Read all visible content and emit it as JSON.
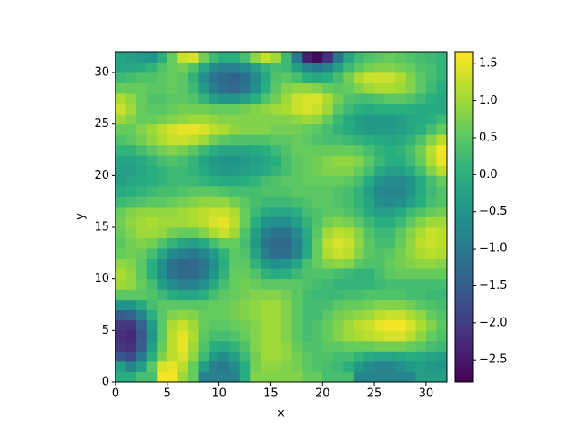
{
  "chart_data": {
    "type": "heatmap",
    "xlabel": "x",
    "ylabel": "y",
    "colormap": "viridis",
    "xlim": [
      0,
      32
    ],
    "ylim": [
      0,
      32
    ],
    "xticks": [
      0,
      5,
      10,
      15,
      20,
      25,
      30
    ],
    "yticks": [
      0,
      5,
      10,
      15,
      20,
      25,
      30
    ],
    "clim": [
      -2.8,
      1.66
    ],
    "cticks": [
      {
        "value": -2.5,
        "label": "−2.5"
      },
      {
        "value": -2,
        "label": "−2.0"
      },
      {
        "value": -1.5,
        "label": "−1.5"
      },
      {
        "value": -1,
        "label": "−1.0"
      },
      {
        "value": -0.5,
        "label": "−0.5"
      },
      {
        "value": 0,
        "label": "0.0"
      },
      0.5,
      {
        "value": 1,
        "label": "1.0"
      },
      1.5
    ],
    "z": [
      [
        0,
        0,
        0.3,
        0.3,
        1.6,
        1.6,
        1.0,
        0.6,
        -0.9,
        -0.9,
        -0.9,
        -0.9,
        0,
        0.8,
        0.8,
        0.8,
        0.8,
        0.8,
        0.6,
        0.6,
        0.3,
        0.3,
        0.3,
        -0.8,
        -0.8,
        -0.8,
        -0.8,
        -0.8,
        -0.8,
        -0.3,
        -0.3,
        -0.3
      ],
      [
        -0.3,
        -0.8,
        -0.3,
        0.5,
        1.4,
        1.5,
        1.2,
        0.6,
        -0.3,
        -0.9,
        -1.0,
        -0.7,
        0,
        0.7,
        0.9,
        0.9,
        0.8,
        0.7,
        0.5,
        0.4,
        0.3,
        0.2,
        0,
        -0.4,
        -0.7,
        -0.8,
        -0.8,
        -0.6,
        -0.4,
        -0.3,
        -0.4,
        -0.5
      ],
      [
        -1.6,
        -1.8,
        -1.0,
        0,
        0.8,
        1.2,
        1.4,
        0.9,
        0.2,
        -0.4,
        -0.6,
        -0.3,
        0.2,
        0.7,
        1.0,
        1.0,
        0.9,
        0.7,
        0.5,
        0.4,
        0.4,
        0.3,
        0.3,
        0.1,
        -0.1,
        -0.2,
        -0.2,
        -0.1,
        0,
        -0.1,
        -0.2,
        -0.3
      ],
      [
        -2.1,
        -2.2,
        -1.5,
        -0.3,
        0.6,
        1.2,
        1.5,
        1.0,
        0.4,
        0,
        -0.1,
        0.1,
        0.4,
        0.8,
        1.0,
        1.0,
        0.9,
        0.6,
        0.4,
        0.4,
        0.5,
        0.5,
        0.6,
        0.6,
        0.6,
        0.7,
        0.7,
        0.7,
        0.6,
        0.5,
        0.3,
        0.2
      ],
      [
        -2.2,
        -2.3,
        -1.6,
        -0.5,
        0.5,
        1.2,
        1.5,
        1.1,
        0.5,
        0.3,
        0.3,
        0.4,
        0.6,
        0.8,
        1.0,
        1.0,
        0.8,
        0.5,
        0.3,
        0.4,
        0.6,
        0.8,
        1.0,
        1.1,
        1.2,
        1.3,
        1.4,
        1.4,
        1.2,
        0.9,
        0.6,
        0.4
      ],
      [
        -2.1,
        -2.1,
        -1.4,
        -0.4,
        0.5,
        1.1,
        1.3,
        1.0,
        0.6,
        0.5,
        0.5,
        0.6,
        0.7,
        0.8,
        1.0,
        1.0,
        0.8,
        0.5,
        0.3,
        0.4,
        0.6,
        0.8,
        1.0,
        1.2,
        1.3,
        1.5,
        1.6,
        1.6,
        1.4,
        1.1,
        0.8,
        0.5
      ],
      [
        -1.5,
        -1.4,
        -0.8,
        0,
        0.5,
        0.8,
        0.9,
        0.8,
        0.6,
        0.6,
        0.6,
        0.7,
        0.8,
        0.9,
        1.0,
        1.0,
        0.8,
        0.5,
        0.3,
        0.3,
        0.5,
        0.7,
        0.8,
        0.9,
        1.0,
        1.2,
        1.3,
        1.3,
        1.1,
        0.9,
        0.6,
        0.4
      ],
      [
        -0.5,
        -0.5,
        -0.1,
        0.3,
        0.5,
        0.5,
        0.5,
        0.5,
        0.5,
        0.6,
        0.6,
        0.7,
        0.8,
        0.9,
        1.0,
        1.0,
        0.8,
        0.5,
        0.3,
        0.3,
        0.3,
        0.5,
        0.6,
        0.6,
        0.7,
        0.8,
        0.8,
        0.8,
        0.7,
        0.5,
        0.4,
        0.3
      ],
      [
        0.5,
        0.5,
        0.5,
        0.4,
        0.2,
        0,
        -0.2,
        -0.2,
        0,
        0.3,
        0.5,
        0.6,
        0.7,
        0.8,
        0.8,
        0.8,
        0.7,
        0.5,
        0.3,
        0.2,
        0.2,
        0.2,
        0.3,
        0.3,
        0.4,
        0.4,
        0.4,
        0.4,
        0.3,
        0.3,
        0.2,
        0.2
      ],
      [
        1.0,
        0.9,
        0.6,
        0.3,
        -0.3,
        -0.7,
        -0.9,
        -0.9,
        -0.6,
        -0.1,
        0.3,
        0.6,
        0.7,
        0.6,
        0.5,
        0.5,
        0.5,
        0.5,
        0.4,
        0.3,
        0.2,
        0.1,
        0.1,
        0.1,
        0.1,
        0.2,
        0.3,
        0.3,
        0.3,
        0.3,
        0.3,
        0.3
      ],
      [
        1.1,
        0.9,
        0.5,
        0,
        -0.6,
        -1.1,
        -1.3,
        -1.3,
        -1.0,
        -0.5,
        0.1,
        0.6,
        0.6,
        0.4,
        0.1,
        -0.1,
        0,
        0.2,
        0.4,
        0.4,
        0.4,
        0.3,
        0.2,
        0.1,
        0.1,
        0.3,
        0.5,
        0.6,
        0.6,
        0.6,
        0.6,
        0.6
      ],
      [
        0.9,
        0.8,
        0.5,
        0,
        -0.6,
        -1.1,
        -1.3,
        -1.3,
        -1.1,
        -0.6,
        0,
        0.5,
        0.5,
        0.1,
        -0.4,
        -0.6,
        -0.5,
        -0.2,
        0.3,
        0.6,
        0.8,
        0.9,
        0.8,
        0.5,
        0.4,
        0.4,
        0.6,
        0.7,
        0.8,
        0.9,
        0.9,
        0.8
      ],
      [
        0.6,
        0.7,
        0.6,
        0.3,
        -0.2,
        -0.7,
        -0.9,
        -1.0,
        -0.8,
        -0.4,
        0.1,
        0.5,
        0.4,
        -0.2,
        -0.9,
        -1.2,
        -1.2,
        -0.8,
        -0.1,
        0.6,
        1.1,
        1.3,
        1.2,
        0.8,
        0.5,
        0.4,
        0.5,
        0.7,
        0.9,
        1.1,
        1.2,
        1.1
      ],
      [
        0.5,
        0.7,
        0.8,
        0.7,
        0.4,
        0.1,
        -0.2,
        -0.3,
        -0.1,
        0.3,
        0.6,
        0.6,
        0.3,
        -0.4,
        -1.1,
        -1.3,
        -1.3,
        -0.9,
        -0.2,
        0.6,
        1.2,
        1.4,
        1.3,
        0.9,
        0.5,
        0.3,
        0.3,
        0.6,
        0.9,
        1.2,
        1.3,
        1.2
      ],
      [
        0.6,
        0.8,
        1.0,
        1.0,
        0.9,
        0.7,
        0.6,
        0.6,
        0.8,
        1.1,
        1.3,
        1.0,
        0.4,
        -0.3,
        -0.9,
        -1.1,
        -1.1,
        -0.7,
        -0.1,
        0.5,
        1.0,
        1.2,
        1.1,
        0.8,
        0.4,
        0.2,
        0.2,
        0.5,
        0.8,
        1.1,
        1.3,
        1.2
      ],
      [
        0.7,
        0.9,
        1.0,
        1.1,
        1.0,
        1.0,
        1.0,
        1.1,
        1.2,
        1.4,
        1.5,
        1.2,
        0.6,
        0,
        -0.5,
        -0.6,
        -0.6,
        -0.3,
        0.1,
        0.4,
        0.7,
        0.8,
        0.7,
        0.5,
        0.2,
        0,
        0,
        0.2,
        0.5,
        0.8,
        1.0,
        1.0
      ],
      [
        0.6,
        0.8,
        0.9,
        0.9,
        0.9,
        0.9,
        1.0,
        1.1,
        1.2,
        1.3,
        1.3,
        1.1,
        0.6,
        0.2,
        -0.1,
        -0.2,
        -0.2,
        0,
        0.3,
        0.4,
        0.5,
        0.5,
        0.4,
        0.2,
        -0.1,
        -0.3,
        -0.3,
        -0.1,
        0.2,
        0.4,
        0.6,
        0.7
      ],
      [
        0.2,
        0.3,
        0.4,
        0.5,
        0.5,
        0.6,
        0.7,
        0.8,
        0.9,
        0.9,
        0.9,
        0.7,
        0.5,
        0.3,
        0.2,
        0.2,
        0.2,
        0.3,
        0.4,
        0.5,
        0.5,
        0.4,
        0.3,
        0.1,
        -0.2,
        -0.6,
        -0.7,
        -0.6,
        -0.3,
        0,
        0.3,
        0.4
      ],
      [
        -0.1,
        0,
        0.1,
        0.2,
        0.3,
        0.3,
        0.4,
        0.5,
        0.5,
        0.5,
        0.4,
        0.3,
        0.3,
        0.3,
        0.4,
        0.4,
        0.4,
        0.5,
        0.5,
        0.5,
        0.5,
        0.4,
        0.3,
        0.1,
        -0.3,
        -0.7,
        -0.8,
        -0.8,
        -0.5,
        -0.1,
        0.2,
        0.4
      ],
      [
        -0.3,
        -0.2,
        -0.1,
        0,
        0.1,
        0.2,
        0.2,
        0.2,
        0.1,
        0,
        -0.1,
        -0.1,
        0,
        0.1,
        0.3,
        0.4,
        0.5,
        0.5,
        0.6,
        0.6,
        0.6,
        0.6,
        0.5,
        0.3,
        -0.1,
        -0.5,
        -0.7,
        -0.7,
        -0.5,
        -0.1,
        0.3,
        0.6
      ],
      [
        -0.3,
        -0.3,
        -0.2,
        0,
        0.1,
        0.2,
        0.2,
        0.1,
        -0.1,
        -0.3,
        -0.4,
        -0.4,
        -0.3,
        -0.2,
        -0.1,
        0.1,
        0.3,
        0.5,
        0.6,
        0.7,
        0.8,
        0.8,
        0.8,
        0.6,
        0.3,
        -0.1,
        -0.3,
        -0.3,
        -0.1,
        0.3,
        0.8,
        1.2
      ],
      [
        -0.2,
        -0.2,
        -0.1,
        0.1,
        0.3,
        0.4,
        0.3,
        0.1,
        -0.2,
        -0.4,
        -0.5,
        -0.5,
        -0.4,
        -0.3,
        -0.2,
        0,
        0.3,
        0.5,
        0.6,
        0.7,
        0.8,
        0.9,
        0.9,
        0.8,
        0.5,
        0.2,
        0,
        0,
        0.2,
        0.6,
        1.1,
        1.5
      ],
      [
        0.1,
        0.1,
        0.3,
        0.5,
        0.7,
        0.8,
        0.7,
        0.5,
        0.2,
        0,
        -0.2,
        -0.2,
        -0.2,
        -0.1,
        0,
        0.2,
        0.4,
        0.6,
        0.6,
        0.6,
        0.6,
        0.6,
        0.6,
        0.5,
        0.3,
        0.1,
        0,
        0.1,
        0.3,
        0.7,
        1.2,
        1.6
      ],
      [
        0.4,
        0.5,
        0.7,
        0.9,
        1.1,
        1.3,
        1.3,
        1.2,
        1.0,
        0.7,
        0.5,
        0.4,
        0.4,
        0.4,
        0.4,
        0.5,
        0.5,
        0.6,
        0.5,
        0.4,
        0.3,
        0.3,
        0.2,
        0.1,
        0,
        -0.1,
        -0.2,
        -0.1,
        0.1,
        0.4,
        0.8,
        1.2
      ],
      [
        0.6,
        0.6,
        0.8,
        1.0,
        1.2,
        1.4,
        1.5,
        1.5,
        1.4,
        1.2,
        1.1,
        0.9,
        0.8,
        0.8,
        0.8,
        0.7,
        0.7,
        0.7,
        0.6,
        0.5,
        0.3,
        0.1,
        -0.1,
        -0.3,
        -0.4,
        -0.4,
        -0.4,
        -0.3,
        -0.2,
        0,
        0.3,
        0.6
      ],
      [
        1.0,
        0.8,
        0.6,
        0.6,
        0.7,
        0.8,
        0.9,
        1.0,
        1.0,
        0.9,
        0.8,
        0.8,
        0.8,
        0.8,
        0.8,
        0.8,
        0.8,
        0.9,
        1.0,
        0.9,
        0.6,
        0.2,
        -0.1,
        -0.3,
        -0.4,
        -0.4,
        -0.4,
        -0.3,
        -0.2,
        -0.1,
        0,
        0.2
      ],
      [
        1.3,
        1.0,
        0.6,
        0.5,
        0.5,
        0.6,
        0.7,
        0.7,
        0.7,
        0.6,
        0.6,
        0.6,
        0.7,
        0.8,
        0.9,
        1.0,
        1.1,
        1.3,
        1.4,
        1.3,
        1.0,
        0.5,
        0.2,
        0,
        -0.1,
        0,
        0,
        0,
        0,
        -0.1,
        -0.1,
        -0.1
      ],
      [
        1.1,
        0.9,
        0.6,
        0.4,
        0.4,
        0.5,
        0.5,
        0.4,
        0.1,
        -0.3,
        -0.5,
        -0.5,
        -0.3,
        0,
        0.4,
        0.7,
        1.0,
        1.3,
        1.4,
        1.4,
        1.1,
        0.7,
        0.4,
        0.3,
        0.3,
        0.4,
        0.5,
        0.5,
        0.4,
        0.2,
        0,
        -0.1
      ],
      [
        0.6,
        0.6,
        0.6,
        0.5,
        0.5,
        0.6,
        0.5,
        0.2,
        -0.4,
        -0.9,
        -1.2,
        -1.3,
        -1.1,
        -0.6,
        0,
        0.5,
        0.8,
        0.9,
        0.9,
        0.8,
        0.6,
        0.5,
        0.6,
        0.8,
        1.0,
        1.1,
        1.1,
        1.0,
        0.8,
        0.5,
        0.2,
        0
      ],
      [
        0.2,
        0.3,
        0.4,
        0.4,
        0.5,
        0.6,
        0.5,
        0.1,
        -0.6,
        -1.1,
        -1.3,
        -1.4,
        -1.2,
        -0.7,
        -0.1,
        0.4,
        0.5,
        0.3,
        0,
        -0.1,
        0,
        0.3,
        0.7,
        1.1,
        1.3,
        1.3,
        1.3,
        1.1,
        0.8,
        0.5,
        0.3,
        0.1
      ],
      [
        -0.2,
        -0.2,
        -0.1,
        0.1,
        0.4,
        0.6,
        0.7,
        0.4,
        -0.2,
        -0.7,
        -0.9,
        -0.9,
        -0.7,
        -0.3,
        0.1,
        0.3,
        0.2,
        -0.3,
        -0.8,
        -1.0,
        -0.8,
        -0.3,
        0.2,
        0.5,
        0.7,
        0.8,
        0.8,
        0.7,
        0.6,
        0.4,
        0.3,
        0.1
      ],
      [
        -0.2,
        -0.3,
        -0.4,
        -0.5,
        0,
        0.6,
        1.3,
        1.4,
        0.7,
        0.2,
        0,
        0,
        0.3,
        0.9,
        1.3,
        1.0,
        0.2,
        -1.0,
        -2.4,
        -2.7,
        -2.2,
        -1.1,
        -0.2,
        0.2,
        0.4,
        0.5,
        0.6,
        0.5,
        0.4,
        0.3,
        0.2,
        0.1
      ]
    ]
  }
}
